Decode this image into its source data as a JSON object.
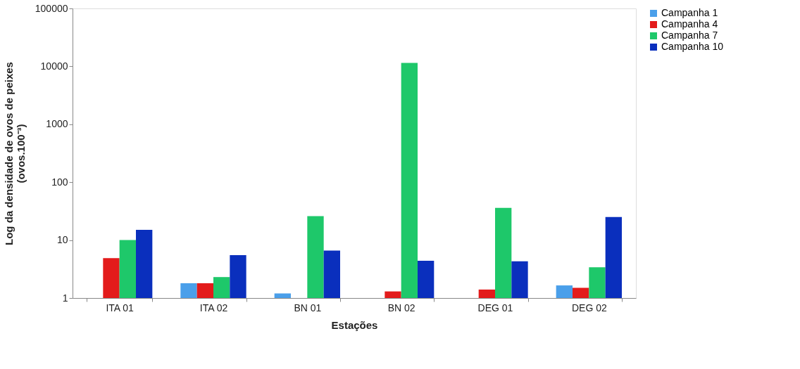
{
  "chart_data": {
    "type": "bar",
    "xlabel": "Estações",
    "ylabel": "Log  da densidade de ovos de peixes\n(ovos.100⁻³)",
    "categories": [
      "ITA 01",
      "ITA 02",
      "BN 01",
      "BN 02",
      "DEG 01",
      "DEG 02"
    ],
    "series": [
      {
        "name": "Campanha 1",
        "color": "#4a9fea",
        "values": [
          null,
          1.8,
          1.2,
          null,
          null,
          1.65
        ]
      },
      {
        "name": "Campanha 4",
        "color": "#e31b1b",
        "values": [
          4.9,
          1.8,
          null,
          1.3,
          1.4,
          1.5
        ]
      },
      {
        "name": "Campanha 7",
        "color": "#1ec86a",
        "values": [
          10,
          2.3,
          26,
          11500,
          36,
          3.4
        ]
      },
      {
        "name": "Campanha 10",
        "color": "#0a2fbd",
        "values": [
          15,
          5.5,
          6.6,
          4.4,
          4.3,
          25
        ]
      }
    ],
    "log": "y",
    "ylim": [
      1,
      100000
    ],
    "yticks": [
      1,
      10,
      100,
      1000,
      10000,
      100000
    ],
    "grid": false,
    "legend": "right"
  }
}
